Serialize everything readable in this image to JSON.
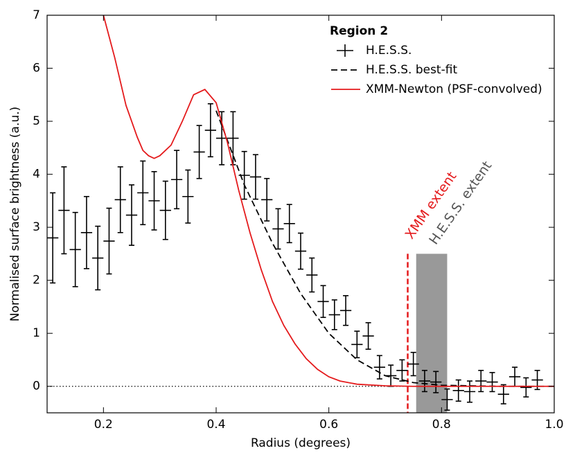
{
  "chart_data": {
    "type": "errorbar",
    "xlabel": "Radius (degrees)",
    "ylabel": "Normalised surface brightness (a.u.)",
    "xlim": [
      0.1,
      1.0
    ],
    "ylim": [
      -0.5,
      7
    ],
    "xticks": [
      0.2,
      0.4,
      0.6,
      0.8,
      {
        "value": 1,
        "label": "1.0"
      }
    ],
    "yticks": [
      0,
      1,
      2,
      3,
      4,
      5,
      6,
      7
    ],
    "zero_line": 0,
    "legend_title": "Region 2",
    "series": [
      {
        "name": "H.E.S.S.",
        "kind": "points",
        "color": "#000000",
        "xerr": 0.01,
        "x": [
          0.11,
          0.13,
          0.15,
          0.17,
          0.19,
          0.21,
          0.23,
          0.25,
          0.27,
          0.29,
          0.31,
          0.33,
          0.35,
          0.37,
          0.39,
          0.41,
          0.43,
          0.45,
          0.47,
          0.49,
          0.51,
          0.53,
          0.55,
          0.57,
          0.59,
          0.61,
          0.63,
          0.65,
          0.67,
          0.69,
          0.71,
          0.73,
          0.75,
          0.77,
          0.79,
          0.81,
          0.83,
          0.85,
          0.87,
          0.89,
          0.91,
          0.93,
          0.95,
          0.97
        ],
        "values": [
          2.8,
          3.32,
          2.58,
          2.9,
          2.42,
          2.74,
          3.52,
          3.23,
          3.65,
          3.5,
          3.32,
          3.9,
          3.58,
          4.42,
          4.83,
          4.68,
          4.68,
          3.98,
          3.95,
          3.52,
          2.97,
          3.07,
          2.55,
          2.1,
          1.6,
          1.35,
          1.43,
          0.79,
          0.95,
          0.36,
          0.2,
          0.3,
          0.42,
          0.1,
          0.08,
          -0.25,
          -0.08,
          -0.1,
          0.1,
          0.08,
          -0.15,
          0.18,
          -0.02,
          0.12
        ],
        "errors": [
          0.85,
          0.82,
          0.7,
          0.68,
          0.6,
          0.62,
          0.62,
          0.57,
          0.6,
          0.55,
          0.55,
          0.55,
          0.5,
          0.5,
          0.5,
          0.5,
          0.5,
          0.45,
          0.42,
          0.4,
          0.38,
          0.36,
          0.34,
          0.32,
          0.3,
          0.28,
          0.28,
          0.25,
          0.25,
          0.22,
          0.2,
          0.2,
          0.22,
          0.2,
          0.2,
          0.2,
          0.2,
          0.2,
          0.2,
          0.18,
          0.18,
          0.18,
          0.18,
          0.18
        ]
      },
      {
        "name": "H.E.S.S. best-fit",
        "kind": "dashed",
        "color": "#000000",
        "x": [
          0.4,
          0.45,
          0.5,
          0.55,
          0.6,
          0.65,
          0.7,
          0.75,
          0.8,
          0.9,
          1.0
        ],
        "values": [
          5.2,
          3.8,
          2.7,
          1.75,
          1.0,
          0.5,
          0.2,
          0.07,
          0.02,
          0,
          0
        ]
      },
      {
        "name": "XMM-Newton (PSF-convolved)",
        "kind": "line",
        "color": "#e41a1c",
        "x": [
          0.2,
          0.22,
          0.24,
          0.26,
          0.27,
          0.28,
          0.29,
          0.3,
          0.32,
          0.34,
          0.36,
          0.38,
          0.4,
          0.42,
          0.44,
          0.46,
          0.48,
          0.5,
          0.52,
          0.54,
          0.56,
          0.58,
          0.6,
          0.62,
          0.65,
          0.7,
          0.75,
          0.8,
          1.0
        ],
        "values": [
          7.0,
          6.2,
          5.3,
          4.7,
          4.45,
          4.35,
          4.3,
          4.35,
          4.55,
          5.0,
          5.5,
          5.6,
          5.35,
          4.6,
          3.7,
          2.9,
          2.2,
          1.6,
          1.15,
          0.8,
          0.52,
          0.32,
          0.18,
          0.1,
          0.04,
          0.01,
          0,
          0,
          0
        ]
      }
    ],
    "annotations": [
      {
        "text": "XMM extent",
        "kind": "vline",
        "x": 0.74,
        "y_top": 2.5,
        "color": "#e41a1c"
      },
      {
        "text": "H.E.S.S. extent",
        "kind": "band",
        "x": [
          0.755,
          0.81
        ],
        "y_top": 2.5,
        "color": "#999999"
      }
    ]
  }
}
